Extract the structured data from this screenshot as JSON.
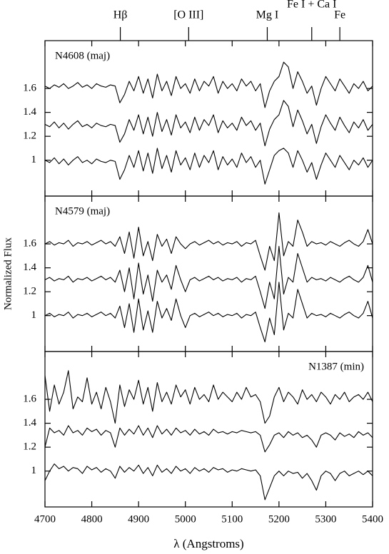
{
  "chart_data": [
    {
      "type": "line",
      "title": "N4608 (maj)",
      "title_corner": "upper left",
      "annotations": [
        {
          "text": "Hβ",
          "x": 4861
        },
        {
          "text": "[O III]",
          "x": 5007
        },
        {
          "text": "Mg I",
          "x": 5175
        },
        {
          "text": "Fe I + Ca I",
          "x": 5270
        },
        {
          "text": "Fe",
          "x": 5330
        }
      ],
      "x": [
        4700,
        4710,
        4720,
        4730,
        4740,
        4750,
        4760,
        4770,
        4780,
        4790,
        4800,
        4810,
        4820,
        4830,
        4840,
        4850,
        4860,
        4870,
        4880,
        4890,
        4900,
        4910,
        4920,
        4930,
        4940,
        4950,
        4960,
        4970,
        4980,
        4990,
        5000,
        5010,
        5020,
        5030,
        5040,
        5050,
        5060,
        5070,
        5080,
        5090,
        5100,
        5110,
        5120,
        5130,
        5140,
        5150,
        5160,
        5170,
        5180,
        5190,
        5200,
        5210,
        5220,
        5230,
        5240,
        5250,
        5260,
        5270,
        5280,
        5290,
        5300,
        5310,
        5320,
        5330,
        5340,
        5350,
        5360,
        5370,
        5380,
        5390,
        5400
      ],
      "series": [
        {
          "color": "#000000",
          "values": [
            1.62,
            1.6,
            1.63,
            1.61,
            1.64,
            1.6,
            1.62,
            1.65,
            1.61,
            1.63,
            1.6,
            1.64,
            1.62,
            1.61,
            1.63,
            1.62,
            1.48,
            1.55,
            1.66,
            1.58,
            1.7,
            1.56,
            1.68,
            1.52,
            1.72,
            1.58,
            1.66,
            1.54,
            1.7,
            1.6,
            1.64,
            1.56,
            1.68,
            1.58,
            1.66,
            1.62,
            1.7,
            1.56,
            1.66,
            1.6,
            1.64,
            1.58,
            1.68,
            1.62,
            1.66,
            1.58,
            1.64,
            1.44,
            1.58,
            1.66,
            1.7,
            1.82,
            1.78,
            1.6,
            1.74,
            1.66,
            1.56,
            1.62,
            1.46,
            1.6,
            1.7,
            1.64,
            1.58,
            1.68,
            1.62,
            1.56,
            1.64,
            1.6,
            1.66,
            1.58,
            1.62
          ]
        },
        {
          "color": "#000000",
          "values": [
            1.3,
            1.28,
            1.32,
            1.27,
            1.31,
            1.26,
            1.3,
            1.33,
            1.28,
            1.3,
            1.27,
            1.31,
            1.29,
            1.28,
            1.3,
            1.29,
            1.15,
            1.22,
            1.34,
            1.25,
            1.38,
            1.22,
            1.36,
            1.2,
            1.4,
            1.24,
            1.34,
            1.21,
            1.38,
            1.27,
            1.32,
            1.23,
            1.36,
            1.25,
            1.34,
            1.29,
            1.38,
            1.23,
            1.33,
            1.27,
            1.31,
            1.25,
            1.36,
            1.29,
            1.33,
            1.25,
            1.31,
            1.12,
            1.26,
            1.34,
            1.38,
            1.5,
            1.45,
            1.28,
            1.42,
            1.33,
            1.22,
            1.3,
            1.14,
            1.28,
            1.38,
            1.31,
            1.25,
            1.36,
            1.29,
            1.23,
            1.32,
            1.27,
            1.34,
            1.25,
            1.3
          ]
        },
        {
          "color": "#000000",
          "values": [
            1.0,
            0.98,
            1.02,
            0.97,
            1.01,
            0.96,
            1.0,
            1.03,
            0.98,
            1.0,
            0.97,
            1.01,
            0.99,
            0.98,
            1.0,
            0.99,
            0.84,
            0.92,
            1.04,
            0.94,
            1.08,
            0.91,
            1.06,
            0.89,
            1.1,
            0.93,
            1.04,
            0.9,
            1.08,
            0.96,
            1.02,
            0.92,
            1.06,
            0.94,
            1.04,
            0.98,
            1.08,
            0.92,
            1.03,
            0.96,
            1.01,
            0.94,
            1.06,
            0.98,
            1.03,
            0.94,
            1.0,
            0.8,
            0.92,
            1.04,
            1.08,
            1.1,
            1.06,
            0.94,
            1.08,
            1.0,
            0.9,
            0.98,
            0.84,
            0.96,
            1.06,
            1.0,
            0.94,
            1.04,
            0.98,
            0.92,
            1.0,
            0.96,
            1.02,
            0.94,
            1.0
          ]
        }
      ],
      "xlim": [
        4700,
        5400
      ],
      "ylim": [
        0.7,
        2.0
      ],
      "yticks": [
        1,
        1.2,
        1.4,
        1.6
      ],
      "xticks": [
        4700,
        4800,
        4900,
        5000,
        5100,
        5200,
        5300,
        5400
      ]
    },
    {
      "type": "line",
      "title": "N4579 (maj)",
      "title_corner": "upper left",
      "ylabel": "Normalized Flux",
      "x": [
        4700,
        4710,
        4720,
        4730,
        4740,
        4750,
        4760,
        4770,
        4780,
        4790,
        4800,
        4810,
        4820,
        4830,
        4840,
        4850,
        4860,
        4870,
        4880,
        4890,
        4900,
        4910,
        4920,
        4930,
        4940,
        4950,
        4960,
        4970,
        4980,
        4990,
        5000,
        5010,
        5020,
        5030,
        5040,
        5050,
        5060,
        5070,
        5080,
        5090,
        5100,
        5110,
        5120,
        5130,
        5140,
        5150,
        5160,
        5170,
        5180,
        5190,
        5200,
        5210,
        5220,
        5230,
        5240,
        5250,
        5260,
        5270,
        5280,
        5290,
        5300,
        5310,
        5320,
        5330,
        5340,
        5350,
        5360,
        5370,
        5380,
        5390,
        5400
      ],
      "series": [
        {
          "color": "#000000",
          "values": [
            1.6,
            1.62,
            1.59,
            1.61,
            1.6,
            1.63,
            1.58,
            1.61,
            1.6,
            1.62,
            1.59,
            1.61,
            1.63,
            1.6,
            1.62,
            1.58,
            1.66,
            1.52,
            1.7,
            1.48,
            1.74,
            1.5,
            1.62,
            1.46,
            1.68,
            1.58,
            1.64,
            1.52,
            1.66,
            1.6,
            1.56,
            1.6,
            1.62,
            1.59,
            1.61,
            1.63,
            1.6,
            1.62,
            1.59,
            1.61,
            1.6,
            1.62,
            1.58,
            1.61,
            1.6,
            1.63,
            1.5,
            1.38,
            1.58,
            1.46,
            1.86,
            1.5,
            1.62,
            1.58,
            1.8,
            1.7,
            1.58,
            1.62,
            1.6,
            1.61,
            1.59,
            1.62,
            1.6,
            1.58,
            1.61,
            1.63,
            1.6,
            1.58,
            1.62,
            1.72,
            1.6
          ]
        },
        {
          "color": "#000000",
          "values": [
            1.3,
            1.32,
            1.29,
            1.31,
            1.3,
            1.33,
            1.28,
            1.31,
            1.3,
            1.32,
            1.29,
            1.31,
            1.33,
            1.3,
            1.32,
            1.28,
            1.38,
            1.2,
            1.4,
            1.14,
            1.44,
            1.18,
            1.34,
            1.12,
            1.38,
            1.28,
            1.34,
            1.22,
            1.42,
            1.3,
            1.2,
            1.3,
            1.32,
            1.29,
            1.31,
            1.33,
            1.3,
            1.32,
            1.29,
            1.31,
            1.3,
            1.32,
            1.28,
            1.31,
            1.3,
            1.33,
            1.2,
            1.06,
            1.28,
            1.14,
            1.58,
            1.18,
            1.32,
            1.28,
            1.52,
            1.4,
            1.28,
            1.32,
            1.3,
            1.31,
            1.29,
            1.32,
            1.3,
            1.28,
            1.31,
            1.33,
            1.3,
            1.28,
            1.32,
            1.42,
            1.28
          ]
        },
        {
          "color": "#000000",
          "values": [
            1.0,
            1.02,
            0.99,
            1.01,
            1.0,
            1.03,
            0.98,
            1.01,
            1.0,
            1.02,
            0.99,
            1.01,
            1.03,
            1.0,
            1.02,
            0.98,
            1.08,
            0.9,
            1.1,
            0.86,
            1.14,
            0.88,
            1.04,
            0.86,
            1.12,
            0.98,
            1.06,
            0.96,
            1.14,
            1.0,
            0.9,
            1.0,
            1.02,
            0.99,
            1.01,
            1.03,
            1.0,
            1.02,
            0.99,
            1.01,
            1.0,
            1.02,
            0.98,
            1.01,
            1.0,
            1.03,
            0.9,
            0.78,
            0.98,
            0.84,
            1.28,
            0.88,
            1.02,
            0.98,
            1.22,
            1.1,
            0.98,
            1.02,
            1.0,
            1.01,
            0.99,
            1.02,
            1.0,
            0.98,
            1.01,
            1.03,
            1.0,
            0.98,
            1.02,
            1.12,
            0.98
          ]
        }
      ],
      "xlim": [
        4700,
        5400
      ],
      "ylim": [
        0.7,
        2.0
      ],
      "yticks": [
        1,
        1.2,
        1.4,
        1.6
      ],
      "xticks": [
        4700,
        4800,
        4900,
        5000,
        5100,
        5200,
        5300,
        5400
      ]
    },
    {
      "type": "line",
      "title": "N1387 (min)",
      "title_corner": "upper right",
      "xlabel": "λ (Angstroms)",
      "x": [
        4700,
        4710,
        4720,
        4730,
        4740,
        4750,
        4760,
        4770,
        4780,
        4790,
        4800,
        4810,
        4820,
        4830,
        4840,
        4850,
        4860,
        4870,
        4880,
        4890,
        4900,
        4910,
        4920,
        4930,
        4940,
        4950,
        4960,
        4970,
        4980,
        4990,
        5000,
        5010,
        5020,
        5030,
        5040,
        5050,
        5060,
        5070,
        5080,
        5090,
        5100,
        5110,
        5120,
        5130,
        5140,
        5150,
        5160,
        5170,
        5180,
        5190,
        5200,
        5210,
        5220,
        5230,
        5240,
        5250,
        5260,
        5270,
        5280,
        5290,
        5300,
        5310,
        5320,
        5330,
        5340,
        5350,
        5360,
        5370,
        5380,
        5390,
        5400
      ],
      "series": [
        {
          "color": "#000000",
          "values": [
            1.8,
            1.5,
            1.72,
            1.56,
            1.66,
            1.84,
            1.52,
            1.62,
            1.58,
            1.78,
            1.56,
            1.66,
            1.52,
            1.7,
            1.58,
            1.4,
            1.72,
            1.54,
            1.68,
            1.6,
            1.76,
            1.56,
            1.7,
            1.5,
            1.74,
            1.58,
            1.66,
            1.56,
            1.72,
            1.62,
            1.68,
            1.56,
            1.7,
            1.6,
            1.64,
            1.58,
            1.72,
            1.6,
            1.66,
            1.62,
            1.58,
            1.66,
            1.6,
            1.7,
            1.62,
            1.64,
            1.58,
            1.4,
            1.46,
            1.62,
            1.7,
            1.58,
            1.66,
            1.62,
            1.56,
            1.68,
            1.6,
            1.64,
            1.58,
            1.66,
            1.62,
            1.56,
            1.64,
            1.6,
            1.66,
            1.58,
            1.62,
            1.64,
            1.6,
            1.66,
            1.58
          ]
        },
        {
          "color": "#000000",
          "values": [
            1.2,
            1.36,
            1.32,
            1.34,
            1.3,
            1.38,
            1.32,
            1.34,
            1.3,
            1.36,
            1.33,
            1.35,
            1.3,
            1.34,
            1.32,
            1.2,
            1.36,
            1.3,
            1.35,
            1.31,
            1.38,
            1.3,
            1.36,
            1.28,
            1.38,
            1.31,
            1.35,
            1.3,
            1.36,
            1.32,
            1.34,
            1.3,
            1.35,
            1.31,
            1.33,
            1.3,
            1.35,
            1.32,
            1.33,
            1.31,
            1.33,
            1.32,
            1.34,
            1.33,
            1.32,
            1.33,
            1.3,
            1.16,
            1.22,
            1.3,
            1.32,
            1.28,
            1.33,
            1.3,
            1.32,
            1.28,
            1.3,
            1.26,
            1.2,
            1.3,
            1.32,
            1.3,
            1.26,
            1.32,
            1.29,
            1.31,
            1.28,
            1.33,
            1.3,
            1.32,
            1.28
          ]
        },
        {
          "color": "#000000",
          "values": [
            0.92,
            1.0,
            1.06,
            1.02,
            1.04,
            1.0,
            1.03,
            1.02,
            0.98,
            1.04,
            1.01,
            1.03,
            0.99,
            1.02,
            1.0,
            0.94,
            1.04,
            0.99,
            1.03,
            1.0,
            1.05,
            0.98,
            1.03,
            0.96,
            1.05,
            0.99,
            1.02,
            0.98,
            1.04,
            1.0,
            1.02,
            0.98,
            1.03,
            1.0,
            1.02,
            0.99,
            1.03,
            1.01,
            1.02,
            0.99,
            1.01,
            1.0,
            1.02,
            1.01,
            1.0,
            1.01,
            0.96,
            0.76,
            0.86,
            0.96,
            1.0,
            0.96,
            1.0,
            0.98,
            0.99,
            0.94,
            0.98,
            0.92,
            0.84,
            0.96,
            1.0,
            0.98,
            0.92,
            0.98,
            1.0,
            0.96,
            0.98,
            1.0,
            0.97,
            1.0,
            0.96
          ]
        }
      ],
      "xlim": [
        4700,
        5400
      ],
      "ylim": [
        0.7,
        2.0
      ],
      "yticks": [
        1,
        1.2,
        1.4,
        1.6
      ],
      "xticks": [
        4700,
        4800,
        4900,
        5000,
        5100,
        5200,
        5300,
        5400
      ]
    }
  ]
}
